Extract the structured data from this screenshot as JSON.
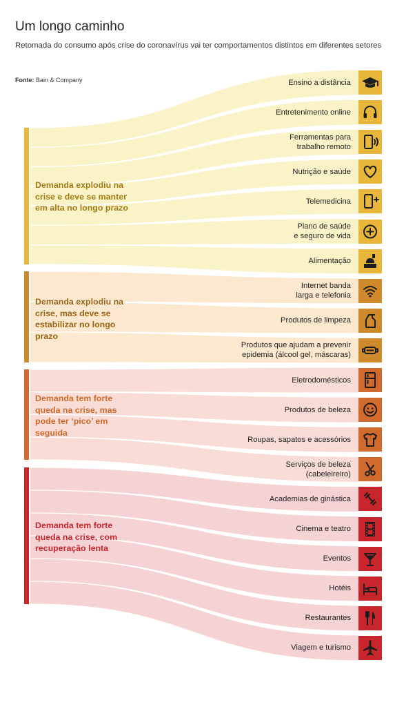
{
  "header": {
    "title": "Um longo caminho",
    "subtitle": "Retomada do consumo após crise do coronavírus vai ter comportamentos distintos em diferentes setores",
    "source_label": "Fonte:",
    "source_value": "Bain & Company"
  },
  "groups": [
    {
      "label": "Demanda explodiu na crise e deve se manter em alta no longo prazo",
      "color": "#e8b63a",
      "flow_color": "#fbf3c8",
      "text_color": "#a07a12"
    },
    {
      "label": "Demanda explodiu na crise, mas deve se estabilizar no longo prazo",
      "color": "#cf8a2c",
      "flow_color": "#fbe8cf",
      "text_color": "#9a6315"
    },
    {
      "label": "Demanda tem forte queda na crise, mas pode ter ‘pico’ em seguida",
      "color": "#d26a2e",
      "flow_color": "#f8dcd5",
      "text_color": "#cf6a2a"
    },
    {
      "label": "Demanda tem forte queda na crise, com recuperação lenta",
      "color": "#c8262c",
      "flow_color": "#f5d2d3",
      "text_color": "#c8262c"
    }
  ],
  "sectors": [
    {
      "label": "Ensino a distância",
      "icon": "graduation-cap-icon",
      "group": 0
    },
    {
      "label": "Entretenimento online",
      "icon": "headphones-icon",
      "group": 0
    },
    {
      "label": "Ferramentas para\ntrabalho remoto",
      "icon": "phone-signal-icon",
      "group": 0
    },
    {
      "label": "Nutrição e saúde",
      "icon": "heart-icon",
      "group": 0
    },
    {
      "label": "Telemedicina",
      "icon": "phone-plus-icon",
      "group": 0
    },
    {
      "label": "Plano de saúde\ne seguro de vida",
      "icon": "plus-circle-icon",
      "group": 0
    },
    {
      "label": "Alimentação",
      "icon": "food-delivery-icon",
      "group": 0
    },
    {
      "label": "Internet banda\nlarga e telefonia",
      "icon": "wifi-icon",
      "group": 1
    },
    {
      "label": "Produtos de limpeza",
      "icon": "spray-bottle-icon",
      "group": 1
    },
    {
      "label": "Produtos que ajudam a prevenir\nepidemia (álcool gel, máscaras)",
      "icon": "mask-icon",
      "group": 1
    },
    {
      "label": "Eletrodomésticos",
      "icon": "fridge-icon",
      "group": 2
    },
    {
      "label": "Produtos de beleza",
      "icon": "smiley-icon",
      "group": 2
    },
    {
      "label": "Roupas, sapatos e acessórios",
      "icon": "tshirt-icon",
      "group": 2
    },
    {
      "label": "Serviços de beleza\n(cabeleireiro)",
      "icon": "scissors-icon",
      "group": 2
    },
    {
      "label": "Academias de ginástica",
      "icon": "dumbbell-icon",
      "group": 3
    },
    {
      "label": "Cinema e teatro",
      "icon": "film-icon",
      "group": 3
    },
    {
      "label": "Eventos",
      "icon": "cocktail-icon",
      "group": 3
    },
    {
      "label": "Hotéis",
      "icon": "bed-icon",
      "group": 3
    },
    {
      "label": "Restaurantes",
      "icon": "cutlery-icon",
      "group": 3
    },
    {
      "label": "Viagem e turismo",
      "icon": "airplane-icon",
      "group": 3
    }
  ]
}
